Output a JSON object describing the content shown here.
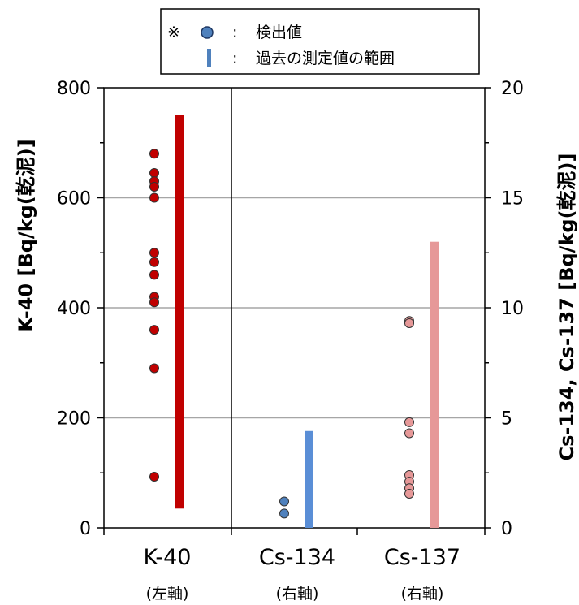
{
  "chart_data": {
    "type": "scatter",
    "ylabel_left": "K-40 [Bq/kg(乾泥)]",
    "ylabel_right": "Cs-134, Cs-137 [Bq/kg(乾泥)]",
    "ylim_left": [
      0,
      800
    ],
    "ylim_right": [
      0,
      20
    ],
    "yticks_left": [
      "0",
      "200",
      "400",
      "600",
      "800"
    ],
    "yticks_right": [
      "0",
      "5",
      "10",
      "15",
      "20"
    ],
    "grid": true,
    "legend": {
      "placement": "top",
      "mark": "※",
      "entries": [
        {
          "symbol": "circle",
          "sep": ":",
          "label": "検出値"
        },
        {
          "symbol": "bar",
          "sep": ":",
          "label": "過去の測定値の範囲"
        }
      ]
    },
    "categories": [
      {
        "name": "K-40",
        "axis_note": "(左軸)"
      },
      {
        "name": "Cs-134",
        "axis_note": "(右軸)"
      },
      {
        "name": "Cs-137",
        "axis_note": "(右軸)"
      }
    ],
    "series": [
      {
        "name": "K-40",
        "axis": "left",
        "color": "#c00000",
        "bar_color": "#c00000",
        "values": [
          680,
          645,
          630,
          620,
          600,
          500,
          483,
          460,
          420,
          410,
          360,
          290,
          93
        ],
        "range": [
          35,
          750
        ]
      },
      {
        "name": "Cs-134",
        "axis": "right",
        "color": "#4f81bd",
        "bar_color": "#5a8ed6",
        "values": [
          1.2,
          0.65
        ],
        "range": [
          0,
          4.4
        ]
      },
      {
        "name": "Cs-137",
        "axis": "right",
        "color": "#e69898",
        "bar_color": "#e69898",
        "values": [
          9.4,
          9.3,
          4.8,
          4.3,
          2.4,
          2.1,
          1.8,
          1.55
        ],
        "range": [
          0,
          13
        ]
      }
    ]
  }
}
